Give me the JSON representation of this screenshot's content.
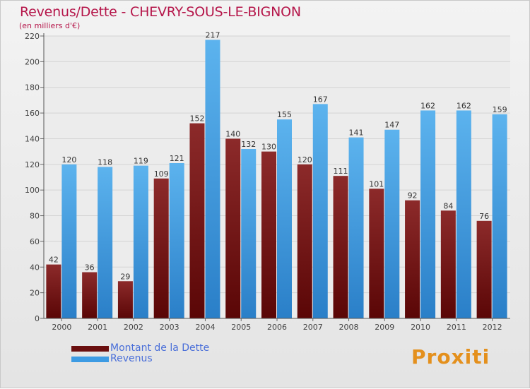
{
  "chart_data": {
    "type": "bar",
    "title": "Revenus/Dette - CHEVRY-SOUS-LE-BIGNON",
    "subtitle": "(en milliers d'€)",
    "categories": [
      "2000",
      "2001",
      "2002",
      "2003",
      "2004",
      "2005",
      "2006",
      "2007",
      "2008",
      "2009",
      "2010",
      "2011",
      "2012"
    ],
    "series": [
      {
        "name": "Montant de la Dette",
        "color": "#7a1c1c",
        "values": [
          42,
          36,
          29,
          109,
          152,
          140,
          130,
          120,
          111,
          101,
          92,
          84,
          76
        ]
      },
      {
        "name": "Revenus",
        "color": "#4aa3e6",
        "values": [
          120,
          118,
          119,
          121,
          217,
          132,
          155,
          167,
          141,
          147,
          162,
          162,
          159
        ]
      }
    ],
    "ylim": [
      0,
      220
    ],
    "yticks": [
      0,
      20,
      40,
      60,
      80,
      100,
      120,
      140,
      160,
      180,
      200,
      220
    ],
    "grid": true,
    "legend_position": "bottom-left"
  },
  "brand": "Proxiti"
}
